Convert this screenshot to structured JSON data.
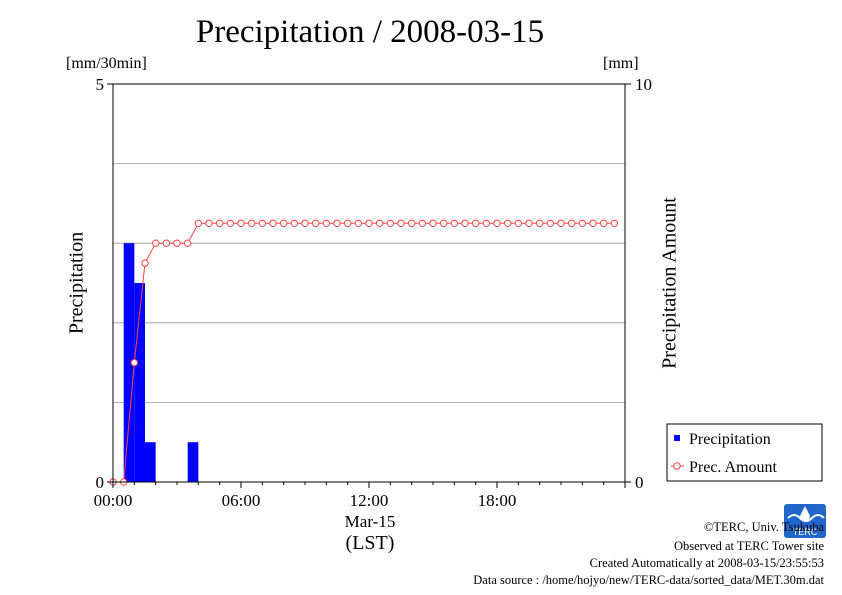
{
  "title": "Precipitation / 2008-03-15",
  "left_unit": "[mm/30min]",
  "right_unit": "[mm]",
  "left_axis_label": "Precipitation",
  "right_axis_label": "Precipitation Amount",
  "x_axis": {
    "date_label": "Mar-15",
    "tz_label": "(LST)"
  },
  "legend": {
    "bar_label": "Precipitation",
    "line_label": "Prec. Amount"
  },
  "footer": {
    "copyright": "©TERC, Univ. Tsukuba",
    "observed": "Observed at TERC Tower site",
    "created": "Created Automatically at 2008-03-15/23:55:53",
    "source": "Data source : /home/hojyo/new/TERC-data/sorted_data/MET.30m.dat"
  },
  "logo": {
    "text": "TERC"
  },
  "colors": {
    "bar": "#0000ff",
    "line": "#ff4444",
    "grid": "#999999"
  },
  "chart_data": {
    "type": "bar",
    "x_unit": "hour",
    "xlim": [
      0,
      24
    ],
    "x_ticks": [
      {
        "value": 0,
        "label": "00:00"
      },
      {
        "value": 6,
        "label": "06:00"
      },
      {
        "value": 12,
        "label": "12:00"
      },
      {
        "value": 18,
        "label": "18:00"
      }
    ],
    "left_y": {
      "ylim": [
        0,
        5
      ],
      "ticks": [
        0,
        5
      ],
      "gridlines": [
        1,
        2,
        3,
        4
      ]
    },
    "right_y": {
      "ylim": [
        0,
        10
      ],
      "ticks": [
        0,
        10
      ]
    },
    "grid": true,
    "legend_position": "bottom-right",
    "series": [
      {
        "name": "Precipitation",
        "axis": "left",
        "kind": "bar",
        "x": [
          0.5,
          1.0,
          1.5,
          3.5
        ],
        "values": [
          3.0,
          2.5,
          0.5,
          0.5
        ]
      },
      {
        "name": "Prec. Amount",
        "axis": "right",
        "kind": "line",
        "x": [
          0,
          0.5,
          1,
          1.5,
          2,
          2.5,
          3,
          3.5,
          4,
          4.5,
          5,
          5.5,
          6,
          6.5,
          7,
          7.5,
          8,
          8.5,
          9,
          9.5,
          10,
          10.5,
          11,
          11.5,
          12,
          12.5,
          13,
          13.5,
          14,
          14.5,
          15,
          15.5,
          16,
          16.5,
          17,
          17.5,
          18,
          18.5,
          19,
          19.5,
          20,
          20.5,
          21,
          21.5,
          22,
          22.5,
          23,
          23.5
        ],
        "values": [
          0,
          0,
          3.0,
          5.5,
          6.0,
          6.0,
          6.0,
          6.0,
          6.5,
          6.5,
          6.5,
          6.5,
          6.5,
          6.5,
          6.5,
          6.5,
          6.5,
          6.5,
          6.5,
          6.5,
          6.5,
          6.5,
          6.5,
          6.5,
          6.5,
          6.5,
          6.5,
          6.5,
          6.5,
          6.5,
          6.5,
          6.5,
          6.5,
          6.5,
          6.5,
          6.5,
          6.5,
          6.5,
          6.5,
          6.5,
          6.5,
          6.5,
          6.5,
          6.5,
          6.5,
          6.5,
          6.5,
          6.5
        ]
      }
    ]
  }
}
